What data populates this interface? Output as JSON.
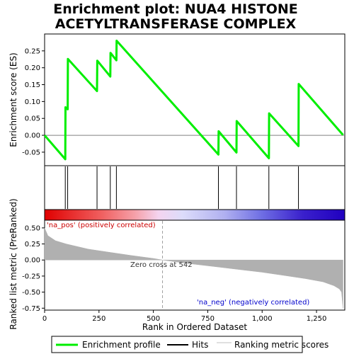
{
  "chart_data": {
    "type": "line",
    "title_lines": [
      "Enrichment plot: NUA4 HISTONE",
      "ACETYLTRANSFERASE COMPLEX"
    ],
    "xlabel": "Rank in Ordered Dataset",
    "ylabel_top": "Enrichment score (ES)",
    "ylabel_bottom": "Ranked list metric (PreRanked)",
    "xlim": [
      0,
      1380
    ],
    "x_ticks": [
      0,
      250,
      500,
      750,
      1000,
      1250
    ],
    "x_tick_labels": [
      "0",
      "250",
      "500",
      "750",
      "1,000",
      "1,250"
    ],
    "es_ylim": [
      -0.09,
      0.3
    ],
    "es_ticks": [
      -0.05,
      0.0,
      0.05,
      0.1,
      0.15,
      0.2,
      0.25
    ],
    "es_tick_labels": [
      "-0.05",
      "0.00",
      "0.05",
      "0.10",
      "0.15",
      "0.20",
      "0.25"
    ],
    "metric_ylim": [
      -0.78,
      0.62
    ],
    "metric_ticks": [
      -0.75,
      -0.5,
      -0.25,
      0.0,
      0.25,
      0.5
    ],
    "metric_tick_labels": [
      "-0.75",
      "-0.50",
      "-0.25",
      "0.00",
      "0.25",
      "0.50"
    ],
    "enrichment_profile": {
      "name": "Enrichment profile",
      "color": "#00ee00",
      "points": [
        [
          0,
          0.0
        ],
        [
          95,
          -0.071
        ],
        [
          96,
          0.083
        ],
        [
          106,
          0.077
        ],
        [
          107,
          0.226
        ],
        [
          241,
          0.131
        ],
        [
          242,
          0.221
        ],
        [
          302,
          0.174
        ],
        [
          303,
          0.244
        ],
        [
          330,
          0.222
        ],
        [
          331,
          0.28
        ],
        [
          799,
          -0.057
        ],
        [
          800,
          0.012
        ],
        [
          882,
          -0.051
        ],
        [
          883,
          0.042
        ],
        [
          1031,
          -0.068
        ],
        [
          1032,
          0.065
        ],
        [
          1167,
          -0.032
        ],
        [
          1168,
          0.152
        ],
        [
          1372,
          0.001
        ]
      ]
    },
    "hits": {
      "name": "Hits",
      "ranks": [
        95,
        106,
        241,
        302,
        330,
        799,
        882,
        1031,
        1167
      ]
    },
    "ranking_metric": {
      "name": "Ranking metric scores",
      "color": "#b0b0b0",
      "points": [
        [
          0,
          0.5
        ],
        [
          15,
          0.38
        ],
        [
          50,
          0.3
        ],
        [
          100,
          0.25
        ],
        [
          200,
          0.17
        ],
        [
          300,
          0.12
        ],
        [
          400,
          0.07
        ],
        [
          500,
          0.025
        ],
        [
          542,
          0.0
        ],
        [
          650,
          -0.05
        ],
        [
          800,
          -0.11
        ],
        [
          900,
          -0.15
        ],
        [
          1000,
          -0.19
        ],
        [
          1100,
          -0.24
        ],
        [
          1200,
          -0.29
        ],
        [
          1280,
          -0.34
        ],
        [
          1330,
          -0.4
        ],
        [
          1355,
          -0.45
        ],
        [
          1365,
          -0.5
        ],
        [
          1372,
          -0.75
        ]
      ]
    },
    "zero_cross_label": "Zero cross at 542",
    "zero_cross_rank": 542,
    "pos_label": "'na_pos' (positively correlated)",
    "neg_label": "'na_neg' (negatively correlated)",
    "pos_color": "#cc0000",
    "neg_color": "#0000cc",
    "legend": [
      "Enrichment profile",
      "Hits",
      "Ranking metric scores"
    ],
    "legend_position": "bottom",
    "grid": false
  }
}
